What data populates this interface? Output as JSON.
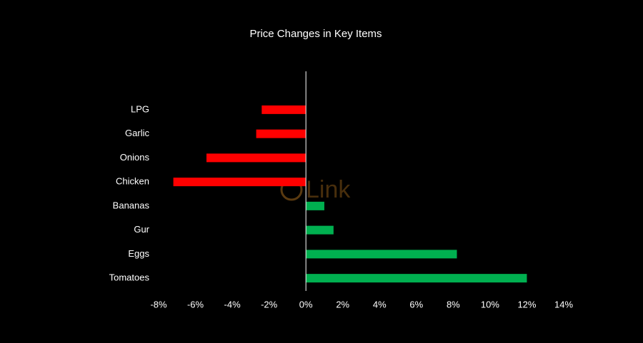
{
  "chart_data": {
    "type": "barh",
    "title": "Price Changes in Key Items",
    "categories": [
      "LPG",
      "Garlic",
      "Onions",
      "Chicken",
      "Bananas",
      "Gur",
      "Eggs",
      "Tomatoes"
    ],
    "values": [
      -2.4,
      -2.7,
      -5.4,
      -7.2,
      1.0,
      1.5,
      8.2,
      12.0
    ],
    "colors": [
      "#ff0000",
      "#ff0000",
      "#ff0000",
      "#ff0000",
      "#00b050",
      "#00b050",
      "#00b050",
      "#00b050"
    ],
    "xlim": [
      -8,
      14
    ],
    "xticks": [
      {
        "value": -8,
        "label": "-8%"
      },
      {
        "value": -6,
        "label": "-6%"
      },
      {
        "value": -4,
        "label": "-4%"
      },
      {
        "value": -2,
        "label": "-2%"
      },
      {
        "value": 0,
        "label": "0%"
      },
      {
        "value": 2,
        "label": "2%"
      },
      {
        "value": 4,
        "label": "4%"
      },
      {
        "value": 6,
        "label": "6%"
      },
      {
        "value": 8,
        "label": "8%"
      },
      {
        "value": 10,
        "label": "10%"
      },
      {
        "value": 12,
        "label": "12%"
      },
      {
        "value": 14,
        "label": "14%"
      }
    ],
    "grid": false,
    "watermark": "Link"
  }
}
